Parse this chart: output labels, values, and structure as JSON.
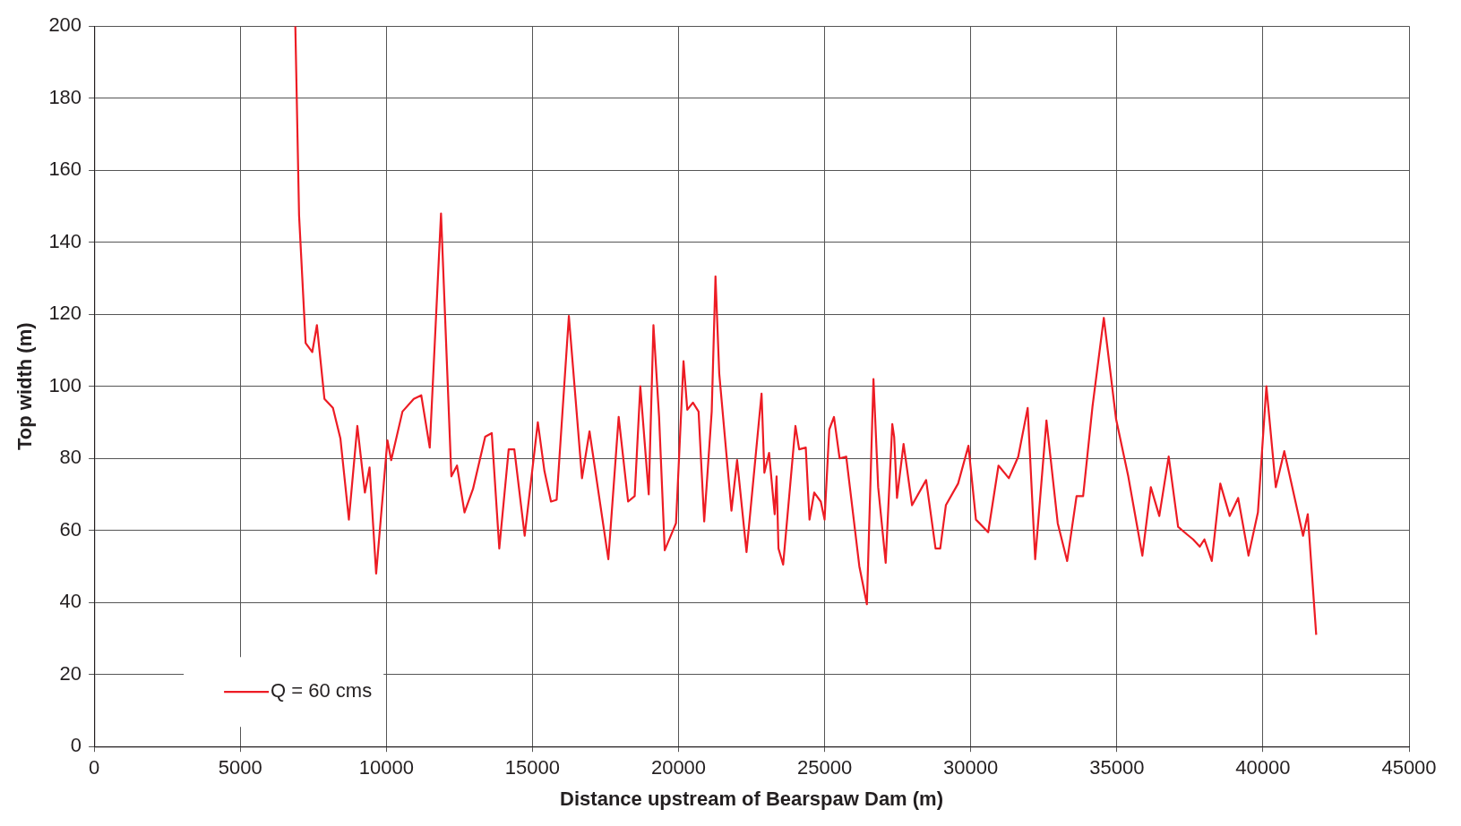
{
  "chart_data": {
    "type": "line",
    "xlabel": "Distance upstream of Bearspaw Dam (m)",
    "ylabel": "Top width (m)",
    "x": [
      6885,
      7013,
      7238,
      7464,
      7624,
      7882,
      8171,
      8428,
      8718,
      9007,
      9265,
      9426,
      9651,
      10037,
      10166,
      10552,
      10938,
      11195,
      11485,
      11871,
      12225,
      12418,
      12675,
      12965,
      13383,
      13608,
      13865,
      14187,
      14380,
      14734,
      15184,
      15410,
      15635,
      15828,
      16246,
      16696,
      16953,
      17597,
      17951,
      18273,
      18498,
      18691,
      18980,
      19141,
      19334,
      19527,
      19913,
      20170,
      20299,
      20492,
      20685,
      20878,
      21135,
      21264,
      21393,
      21811,
      22004,
      22326,
      22841,
      22937,
      23098,
      23290,
      23355,
      23420,
      23580,
      24000,
      24128,
      24354,
      24482,
      24643,
      24868,
      24997,
      25158,
      25319,
      25512,
      25738,
      26188,
      26446,
      26671,
      26832,
      27089,
      27315,
      27379,
      27476,
      27701,
      27991,
      28473,
      28795,
      28956,
      29149,
      29567,
      29921,
      30178,
      30597,
      30950,
      31304,
      31626,
      31948,
      32205,
      32591,
      32977,
      33300,
      33621,
      33846,
      34168,
      34554,
      34972,
      35391,
      35873,
      36163,
      36453,
      36774,
      37096,
      37386,
      37611,
      37836,
      37997,
      38250,
      38540,
      38862,
      39152,
      39506,
      39828,
      40118,
      40440,
      40730,
      41373,
      41534,
      41823
    ],
    "series": [
      {
        "name": "Q = 60 cms",
        "color": "#ed1c24",
        "values": [
          200,
          147.5,
          112,
          109.5,
          117,
          96.5,
          94,
          85.5,
          63,
          89,
          70.5,
          77.5,
          48,
          85,
          79.5,
          93,
          96.5,
          97.5,
          83,
          148,
          75,
          78,
          65,
          71.5,
          86,
          87,
          55,
          82.5,
          82.5,
          58.5,
          90,
          76.5,
          68,
          68.5,
          119.5,
          74.5,
          87.5,
          52,
          91.5,
          68,
          69.5,
          100,
          70,
          117,
          91.5,
          54.5,
          62,
          107,
          93.5,
          95.5,
          93,
          62.5,
          93,
          130.5,
          103.5,
          65.5,
          79.5,
          54,
          98,
          76,
          81.5,
          64.5,
          75,
          55,
          50.5,
          89,
          82.5,
          83,
          63,
          70.5,
          68,
          63,
          88,
          91.5,
          80,
          80.5,
          50,
          39.5,
          102,
          72,
          51,
          89.5,
          86,
          69,
          84,
          67,
          74,
          55,
          55,
          67,
          73,
          83.5,
          63,
          59.5,
          78,
          74.5,
          80.5,
          94,
          52,
          90.5,
          62,
          51.5,
          69.5,
          69.5,
          94.5,
          119,
          91,
          75,
          53,
          72,
          64,
          80.5,
          61,
          59,
          57.5,
          55.5,
          57.5,
          51.5,
          73,
          64,
          69,
          53,
          65,
          100,
          72,
          82,
          58.5,
          64.5,
          31
        ]
      }
    ],
    "xlim": [
      0,
      45000
    ],
    "xticks": [
      0,
      5000,
      10000,
      15000,
      20000,
      25000,
      30000,
      35000,
      40000,
      45000
    ],
    "ylim": [
      0,
      200
    ],
    "yticks": [
      0,
      20,
      40,
      60,
      80,
      100,
      120,
      140,
      160,
      180,
      200
    ],
    "grid": true,
    "legend": "bottom left",
    "marker": "none",
    "line_style": "solid"
  }
}
